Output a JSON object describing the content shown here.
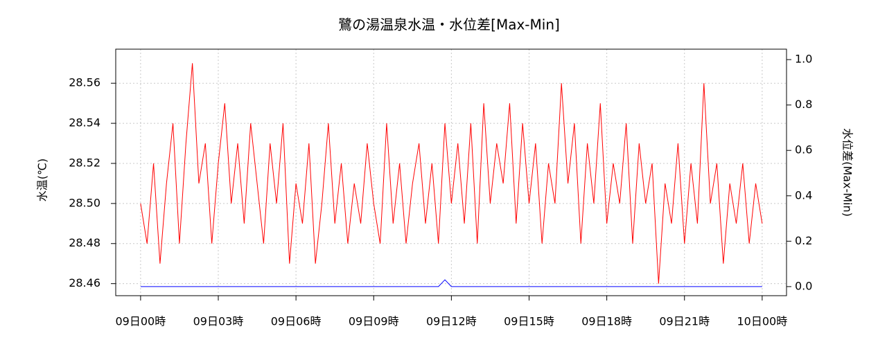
{
  "chart_data": {
    "type": "line",
    "title": "鷺の湯温泉水温・水位差[Max-Min]",
    "y_label": "水温(℃)",
    "y2_label": "水位差(Max-Min)",
    "x": [
      0,
      0.25,
      0.5,
      0.75,
      1,
      1.25,
      1.5,
      1.75,
      2,
      2.25,
      2.5,
      2.75,
      3,
      3.25,
      3.5,
      3.75,
      4,
      4.25,
      4.5,
      4.75,
      5,
      5.25,
      5.5,
      5.75,
      6,
      6.25,
      6.5,
      6.75,
      7,
      7.25,
      7.5,
      7.75,
      8,
      8.25,
      8.5,
      8.75,
      9,
      9.25,
      9.5,
      9.75,
      10,
      10.25,
      10.5,
      10.75,
      11,
      11.25,
      11.5,
      11.75,
      12,
      12.25,
      12.5,
      12.75,
      13,
      13.25,
      13.5,
      13.75,
      14,
      14.25,
      14.5,
      14.75,
      15,
      15.25,
      15.5,
      15.75,
      16,
      16.25,
      16.5,
      16.75,
      17,
      17.25,
      17.5,
      17.75,
      18,
      18.25,
      18.5,
      18.75,
      19,
      19.25,
      19.5,
      19.75,
      20,
      20.25,
      20.5,
      20.75,
      21,
      21.25,
      21.5,
      21.75,
      22,
      22.25,
      22.5,
      22.75,
      23,
      23.25,
      23.5,
      23.75,
      24
    ],
    "series": [
      {
        "name": "水温",
        "color": "#ff0000",
        "values": [
          28.5,
          28.48,
          28.52,
          28.47,
          28.51,
          28.54,
          28.48,
          28.53,
          28.57,
          28.51,
          28.53,
          28.48,
          28.52,
          28.55,
          28.5,
          28.53,
          28.49,
          28.54,
          28.51,
          28.48,
          28.53,
          28.5,
          28.54,
          28.47,
          28.51,
          28.49,
          28.53,
          28.47,
          28.5,
          28.54,
          28.49,
          28.52,
          28.48,
          28.51,
          28.49,
          28.53,
          28.5,
          28.48,
          28.54,
          28.49,
          28.52,
          28.48,
          28.51,
          28.53,
          28.49,
          28.52,
          28.48,
          28.54,
          28.5,
          28.53,
          28.49,
          28.54,
          28.48,
          28.55,
          28.5,
          28.53,
          28.51,
          28.55,
          28.49,
          28.54,
          28.5,
          28.53,
          28.48,
          28.52,
          28.5,
          28.56,
          28.51,
          28.54,
          28.48,
          28.53,
          28.5,
          28.55,
          28.49,
          28.52,
          28.5,
          28.54,
          28.48,
          28.53,
          28.5,
          28.52,
          28.46,
          28.51,
          28.49,
          28.53,
          28.48,
          28.52,
          28.49,
          28.56,
          28.5,
          28.52,
          28.47,
          28.51,
          28.49,
          28.52,
          28.48,
          28.51,
          28.49
        ]
      },
      {
        "name": "水位差",
        "color": "#0000ff",
        "axis": "y2",
        "values": [
          0,
          0,
          0,
          0,
          0,
          0,
          0,
          0,
          0,
          0,
          0,
          0,
          0,
          0,
          0,
          0,
          0,
          0,
          0,
          0,
          0,
          0,
          0,
          0,
          0,
          0,
          0,
          0,
          0,
          0,
          0,
          0,
          0,
          0,
          0,
          0,
          0,
          0,
          0,
          0,
          0,
          0,
          0,
          0,
          0,
          0,
          0,
          0.03,
          0,
          0,
          0,
          0,
          0,
          0,
          0,
          0,
          0,
          0,
          0,
          0,
          0,
          0,
          0,
          0,
          0,
          0,
          0,
          0,
          0,
          0,
          0,
          0,
          0,
          0,
          0,
          0,
          0,
          0,
          0,
          0,
          0,
          0,
          0,
          0,
          0,
          0,
          0,
          0,
          0,
          0,
          0,
          0,
          0,
          0,
          0,
          0,
          0
        ]
      }
    ],
    "xlim": [
      -0.96,
      24.94
    ],
    "xticks": [
      {
        "value": 0,
        "label": "09日00時"
      },
      {
        "value": 3,
        "label": "09日03時"
      },
      {
        "value": 6,
        "label": "09日06時"
      },
      {
        "value": 9,
        "label": "09日09時"
      },
      {
        "value": 12,
        "label": "09日12時"
      },
      {
        "value": 15,
        "label": "09日15時"
      },
      {
        "value": 18,
        "label": "09日18時"
      },
      {
        "value": 21,
        "label": "09日21時"
      },
      {
        "value": 24,
        "label": "10日00時"
      }
    ],
    "ylim": [
      28.454,
      28.577
    ],
    "yticks": [
      28.46,
      28.48,
      {
        "value": 28.5,
        "label": "28.50"
      },
      28.52,
      28.54,
      28.56
    ],
    "y2lim": [
      -0.04,
      1.046
    ],
    "y2ticks": [
      {
        "value": 0,
        "label": "0.0"
      },
      0.2,
      0.4,
      0.6,
      0.8,
      {
        "value": 1,
        "label": "1.0"
      }
    ],
    "grid": true
  }
}
